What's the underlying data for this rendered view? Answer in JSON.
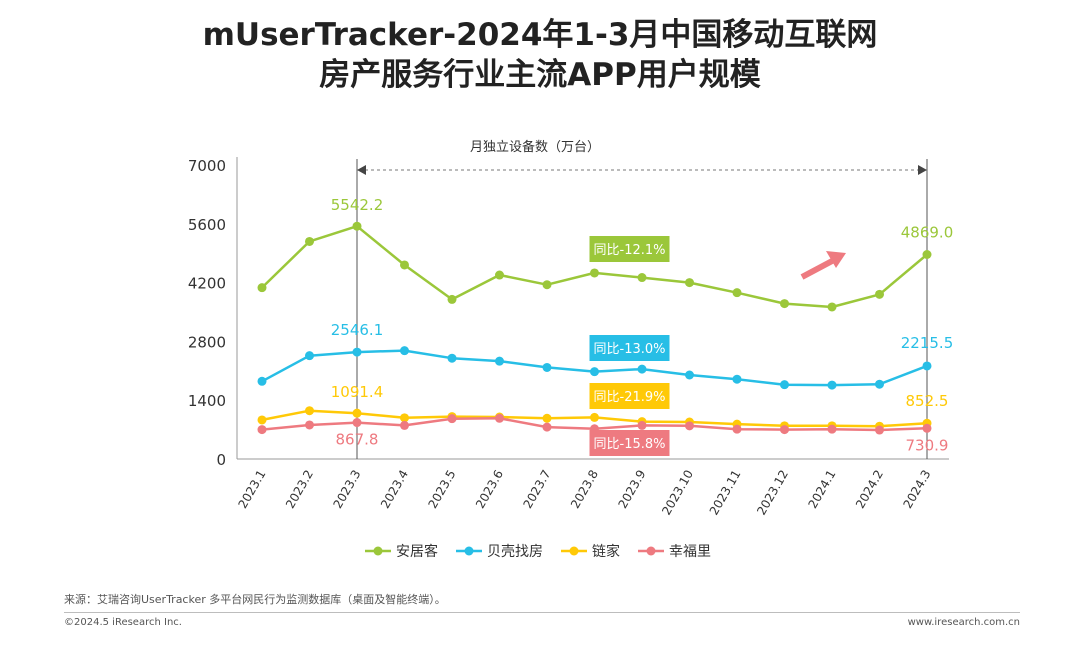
{
  "title": {
    "line1": "mUserTracker-2024年1-3月中国移动互联网",
    "line2": "房产服务行业主流APP用户规模"
  },
  "chart_data": {
    "type": "line",
    "subtitle": "月独立设备数（万台）",
    "categories": [
      "2023.1",
      "2023.2",
      "2023.3",
      "2023.4",
      "2023.5",
      "2023.6",
      "2023.7",
      "2023.8",
      "2023.9",
      "2023.10",
      "2023.11",
      "2023.12",
      "2024.1",
      "2024.2",
      "2024.3"
    ],
    "ylim": [
      0,
      7000
    ],
    "yticks": [
      0,
      1400,
      2800,
      4200,
      5600,
      7000
    ],
    "series": [
      {
        "name": "安居客",
        "color": "#9BC73A",
        "values": [
          4080,
          5180,
          5542.2,
          4620,
          3800,
          4380,
          4150,
          4430,
          4320,
          4200,
          3960,
          3700,
          3620,
          3920,
          4869.0
        ]
      },
      {
        "name": "贝壳找房",
        "color": "#27BEE6",
        "values": [
          1850,
          2460,
          2546.1,
          2580,
          2400,
          2330,
          2180,
          2080,
          2140,
          2000,
          1900,
          1770,
          1760,
          1780,
          2215.5
        ]
      },
      {
        "name": "链家",
        "color": "#FFC907",
        "values": [
          930,
          1150,
          1091.4,
          980,
          1010,
          1000,
          970,
          990,
          890,
          880,
          830,
          790,
          790,
          780,
          852.5
        ]
      },
      {
        "name": "幸福里",
        "color": "#EE7A80",
        "values": [
          700,
          810,
          867.8,
          800,
          960,
          970,
          760,
          720,
          800,
          790,
          710,
          700,
          710,
          690,
          730.9
        ]
      }
    ],
    "endpoint_labels": [
      {
        "series": 0,
        "start": "5542.2",
        "end": "4869.0"
      },
      {
        "series": 1,
        "start": "2546.1",
        "end": "2215.5"
      },
      {
        "series": 2,
        "start": "1091.4",
        "end": "852.5"
      },
      {
        "series": 3,
        "start": "867.8",
        "end": "730.9"
      }
    ],
    "yoy_badges": [
      {
        "series": 0,
        "text": "同比-12.1%"
      },
      {
        "series": 1,
        "text": "同比-13.0%"
      },
      {
        "series": 2,
        "text": "同比-21.9%"
      },
      {
        "series": 3,
        "text": "同比-15.8%"
      }
    ],
    "legend_position": "bottom-center"
  },
  "footer": {
    "source": "来源：艾瑞咨询UserTracker 多平台网民行为监测数据库（桌面及智能终端）。",
    "copyright": "©2024.5 iResearch Inc.",
    "website": "www.iresearch.com.cn"
  }
}
